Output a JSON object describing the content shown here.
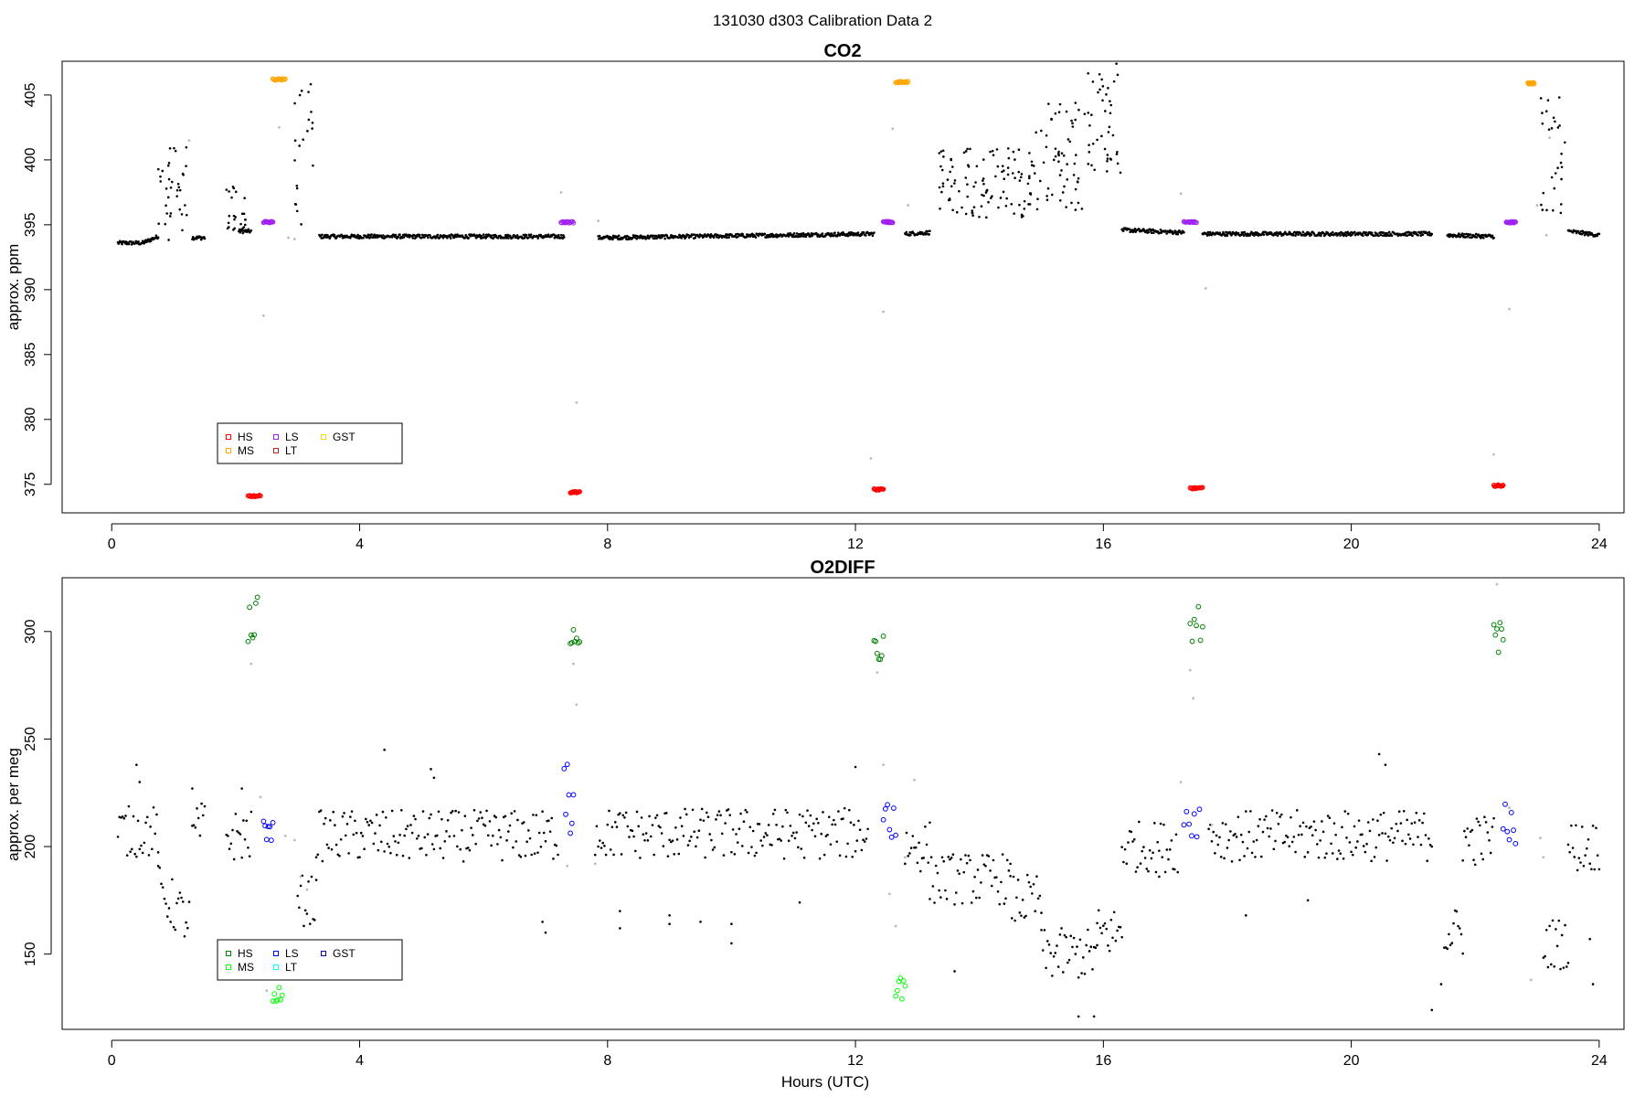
{
  "figure": {
    "suptitle": "131030   d303   Calibration Data 2",
    "xlabel": "Hours (UTC)"
  },
  "chart_data": [
    {
      "type": "scatter",
      "title": "CO2",
      "ylabel": "approx. ppm",
      "xlabel": "",
      "xlim": [
        -0.8,
        24.4
      ],
      "ylim": [
        372.8,
        407.6
      ],
      "xticks": [
        0,
        4,
        8,
        12,
        16,
        20,
        24
      ],
      "yticks": [
        375,
        380,
        385,
        390,
        395,
        400,
        405
      ],
      "legend": {
        "placement": "bottom-left",
        "entries": [
          {
            "label": "HS",
            "color": "#ff0000"
          },
          {
            "label": "MS",
            "color": "#ffa500"
          },
          {
            "label": "LS",
            "color": "#a020f0"
          },
          {
            "label": "LT",
            "color": "#b22222"
          },
          {
            "label": "GST",
            "color": "#ffd700"
          }
        ]
      },
      "ambient": {
        "color": "#000000",
        "segments": [
          {
            "x": [
              0.1,
              0.5
            ],
            "y": [
              393.6,
              393.6
            ]
          },
          {
            "x": [
              0.5,
              0.75
            ],
            "y": [
              393.6,
              394.1
            ]
          },
          {
            "x": [
              1.3,
              1.5
            ],
            "y": [
              394.0,
              394.0
            ]
          },
          {
            "x": [
              2.05,
              2.25
            ],
            "y": [
              394.5,
              394.5
            ]
          },
          {
            "x": [
              3.35,
              7.3
            ],
            "y": [
              394.1,
              394.1
            ]
          },
          {
            "x": [
              7.85,
              12.3
            ],
            "y": [
              394.0,
              394.3
            ]
          },
          {
            "x": [
              12.8,
              13.2
            ],
            "y": [
              394.3,
              394.4
            ]
          },
          {
            "x": [
              16.3,
              17.3
            ],
            "y": [
              394.6,
              394.4
            ]
          },
          {
            "x": [
              17.6,
              21.3
            ],
            "y": [
              394.3,
              394.3
            ]
          },
          {
            "x": [
              21.55,
              22.3
            ],
            "y": [
              394.2,
              394.1
            ]
          },
          {
            "x": [
              23.5,
              24.0
            ],
            "y": [
              394.5,
              394.2
            ]
          }
        ],
        "clusters": [
          {
            "x": [
              0.75,
              1.25
            ],
            "y": [
              393.8,
              401.0
            ]
          },
          {
            "x": [
              1.85,
              2.2
            ],
            "y": [
              394.2,
              398.0
            ]
          },
          {
            "x": [
              2.95,
              3.25
            ],
            "y": [
              394.5,
              406.5
            ]
          },
          {
            "x": [
              13.35,
              14.9
            ],
            "y": [
              395.5,
              401.0
            ]
          },
          {
            "x": [
              14.9,
              15.7
            ],
            "y": [
              396.0,
              404.5
            ]
          },
          {
            "x": [
              15.7,
              16.3
            ],
            "y": [
              399.0,
              407.5
            ]
          },
          {
            "x": [
              23.05,
              23.45
            ],
            "y": [
              395.0,
              405.0
            ]
          }
        ]
      },
      "excluded": {
        "color": "#bbbbbb",
        "points": [
          [
            1.25,
            401.5
          ],
          [
            2.45,
            388.0
          ],
          [
            2.7,
            402.5
          ],
          [
            2.85,
            394.0
          ],
          [
            2.95,
            393.9
          ],
          [
            7.25,
            397.5
          ],
          [
            7.5,
            381.3
          ],
          [
            7.85,
            395.3
          ],
          [
            12.25,
            377.0
          ],
          [
            12.45,
            388.3
          ],
          [
            12.6,
            402.4
          ],
          [
            12.85,
            396.5
          ],
          [
            17.25,
            397.4
          ],
          [
            17.65,
            390.1
          ],
          [
            22.3,
            377.3
          ],
          [
            22.55,
            388.5
          ],
          [
            23.0,
            396.5
          ],
          [
            23.2,
            401.7
          ],
          [
            23.15,
            394.2
          ]
        ]
      },
      "calibrations": [
        {
          "label": "HS",
          "color": "#ff0000",
          "x": [
            2.2,
            2.4
          ],
          "y": 374.1
        },
        {
          "label": "HS",
          "color": "#ff0000",
          "x": [
            7.4,
            7.55
          ],
          "y": 374.4
        },
        {
          "label": "HS",
          "color": "#ff0000",
          "x": [
            12.3,
            12.45
          ],
          "y": 374.6
        },
        {
          "label": "HS",
          "color": "#ff0000",
          "x": [
            17.4,
            17.6
          ],
          "y": 374.7
        },
        {
          "label": "HS",
          "color": "#ff0000",
          "x": [
            22.3,
            22.45
          ],
          "y": 374.9
        },
        {
          "label": "MS",
          "color": "#ffa500",
          "x": [
            2.6,
            2.8
          ],
          "y": 406.2
        },
        {
          "label": "MS",
          "color": "#ffa500",
          "x": [
            12.65,
            12.85
          ],
          "y": 406.0
        },
        {
          "label": "MS",
          "color": "#ffa500",
          "x": [
            22.85,
            22.95
          ],
          "y": 405.9
        },
        {
          "label": "LS",
          "color": "#a020f0",
          "x": [
            2.45,
            2.6
          ],
          "y": 395.2
        },
        {
          "label": "LS",
          "color": "#a020f0",
          "x": [
            7.25,
            7.45
          ],
          "y": 395.2
        },
        {
          "label": "LS",
          "color": "#a020f0",
          "x": [
            12.45,
            12.6
          ],
          "y": 395.2
        },
        {
          "label": "LS",
          "color": "#a020f0",
          "x": [
            17.3,
            17.5
          ],
          "y": 395.2
        },
        {
          "label": "LS",
          "color": "#a020f0",
          "x": [
            22.5,
            22.65
          ],
          "y": 395.2
        }
      ]
    },
    {
      "type": "scatter",
      "title": "O2DIFF",
      "ylabel": "approx. per meg",
      "xlabel": "Hours (UTC)",
      "xlim": [
        -0.8,
        24.4
      ],
      "ylim": [
        115,
        325
      ],
      "xticks": [
        0,
        4,
        8,
        12,
        16,
        20,
        24
      ],
      "yticks": [
        150,
        200,
        250,
        300
      ],
      "legend": {
        "placement": "bottom-left",
        "entries": [
          {
            "label": "HS",
            "color": "#008000"
          },
          {
            "label": "MS",
            "color": "#00ff00"
          },
          {
            "label": "LS",
            "color": "#0000ff"
          },
          {
            "label": "LT",
            "color": "#00ffff"
          },
          {
            "label": "GST",
            "color": "#0000aa"
          }
        ]
      },
      "ambient": {
        "color": "#000000",
        "segments": [
          {
            "x": [
              0.1,
              0.75
            ],
            "y": [
              207,
              207
            ]
          },
          {
            "x": [
              0.75,
              1.25
            ],
            "y": [
              180,
              165
            ]
          },
          {
            "x": [
              1.3,
              1.5
            ],
            "y": [
              205,
              210
            ]
          },
          {
            "x": [
              1.85,
              2.25
            ],
            "y": [
              205,
              205
            ]
          },
          {
            "x": [
              3.0,
              3.3
            ],
            "y": [
              175,
              175
            ]
          },
          {
            "x": [
              3.3,
              7.2
            ],
            "y": [
              205,
              205
            ]
          },
          {
            "x": [
              7.8,
              12.2
            ],
            "y": [
              206,
              206
            ]
          },
          {
            "x": [
              12.8,
              13.2
            ],
            "y": [
              200,
              200
            ]
          },
          {
            "x": [
              13.2,
              14.5
            ],
            "y": [
              185,
              185
            ]
          },
          {
            "x": [
              14.5,
              15.0
            ],
            "y": [
              175,
              175
            ]
          },
          {
            "x": [
              15.0,
              15.9
            ],
            "y": [
              150,
              150
            ]
          },
          {
            "x": [
              15.9,
              16.3
            ],
            "y": [
              160,
              160
            ]
          },
          {
            "x": [
              16.3,
              17.2
            ],
            "y": [
              200,
              200
            ]
          },
          {
            "x": [
              17.7,
              21.3
            ],
            "y": [
              205,
              205
            ]
          },
          {
            "x": [
              21.5,
              21.8
            ],
            "y": [
              160,
              160
            ]
          },
          {
            "x": [
              21.8,
              22.3
            ],
            "y": [
              203,
              203
            ]
          },
          {
            "x": [
              23.1,
              23.5
            ],
            "y": [
              155,
              155
            ]
          },
          {
            "x": [
              23.5,
              24.0
            ],
            "y": [
              200,
              200
            ]
          }
        ],
        "outliers": [
          [
            0.4,
            238
          ],
          [
            0.45,
            230
          ],
          [
            1.3,
            227
          ],
          [
            2.1,
            227
          ],
          [
            4.4,
            245
          ],
          [
            5.15,
            236
          ],
          [
            5.2,
            232
          ],
          [
            6.95,
            165
          ],
          [
            7.0,
            160
          ],
          [
            8.2,
            170
          ],
          [
            8.2,
            162
          ],
          [
            9.0,
            168
          ],
          [
            9.0,
            164
          ],
          [
            9.5,
            165
          ],
          [
            10.0,
            155
          ],
          [
            10.0,
            164
          ],
          [
            11.1,
            174
          ],
          [
            12.0,
            237
          ],
          [
            13.6,
            142
          ],
          [
            15.6,
            121
          ],
          [
            15.85,
            121
          ],
          [
            16.9,
            186
          ],
          [
            18.3,
            168
          ],
          [
            19.3,
            175
          ],
          [
            20.45,
            243
          ],
          [
            20.55,
            238
          ],
          [
            21.3,
            124
          ],
          [
            21.45,
            136
          ],
          [
            23.9,
            136
          ],
          [
            23.85,
            157
          ]
        ]
      },
      "excluded": {
        "color": "#bbbbbb",
        "points": [
          [
            2.25,
            285
          ],
          [
            2.4,
            223
          ],
          [
            2.5,
            133
          ],
          [
            2.8,
            205
          ],
          [
            2.95,
            203
          ],
          [
            3.05,
            186
          ],
          [
            3.15,
            180
          ],
          [
            7.35,
            191
          ],
          [
            7.45,
            285
          ],
          [
            7.5,
            266
          ],
          [
            7.8,
            192
          ],
          [
            12.35,
            281
          ],
          [
            12.45,
            238
          ],
          [
            12.55,
            178
          ],
          [
            12.65,
            163
          ],
          [
            12.8,
            195
          ],
          [
            12.95,
            231
          ],
          [
            17.25,
            230
          ],
          [
            17.4,
            282
          ],
          [
            17.45,
            269
          ],
          [
            17.75,
            210
          ],
          [
            22.35,
            322
          ],
          [
            22.55,
            218
          ],
          [
            22.9,
            138
          ],
          [
            23.1,
            195
          ],
          [
            23.05,
            204
          ]
        ]
      },
      "calibrations": [
        {
          "label": "HS",
          "color": "#008000",
          "x": [
            2.2,
            2.35
          ],
          "y": [
            295,
            316
          ]
        },
        {
          "label": "HS",
          "color": "#008000",
          "x": [
            7.4,
            7.55
          ],
          "y": [
            292,
            304
          ]
        },
        {
          "label": "HS",
          "color": "#008000",
          "x": [
            12.3,
            12.45
          ],
          "y": [
            285,
            298
          ]
        },
        {
          "label": "HS",
          "color": "#008000",
          "x": [
            17.4,
            17.6
          ],
          "y": [
            292,
            312
          ]
        },
        {
          "label": "HS",
          "color": "#008000",
          "x": [
            22.3,
            22.45
          ],
          "y": [
            287,
            305
          ]
        },
        {
          "label": "MS",
          "color": "#00ff00",
          "x": [
            2.6,
            2.75
          ],
          "y": [
            127,
            140
          ]
        },
        {
          "label": "MS",
          "color": "#00ff00",
          "x": [
            12.65,
            12.8
          ],
          "y": [
            126,
            140
          ]
        },
        {
          "label": "LS",
          "color": "#0000ff",
          "x": [
            2.45,
            2.6
          ],
          "y": [
            200,
            213
          ]
        },
        {
          "label": "LS",
          "color": "#0000ff",
          "x": [
            7.3,
            7.45
          ],
          "y": [
            205,
            240
          ]
        },
        {
          "label": "LS",
          "color": "#0000ff",
          "x": [
            12.45,
            12.65
          ],
          "y": [
            202,
            220
          ]
        },
        {
          "label": "LS",
          "color": "#0000ff",
          "x": [
            17.3,
            17.55
          ],
          "y": [
            202,
            218
          ]
        },
        {
          "label": "LS",
          "color": "#0000ff",
          "x": [
            22.45,
            22.65
          ],
          "y": [
            200,
            222
          ]
        }
      ]
    }
  ]
}
